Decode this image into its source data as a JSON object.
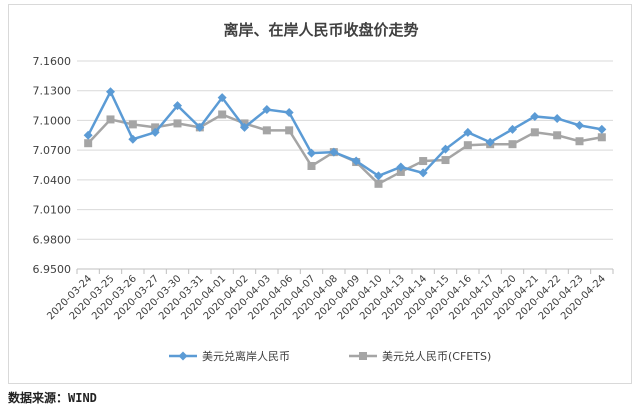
{
  "source": "数据来源：WIND",
  "chart_data": {
    "type": "line",
    "title": "离岸、在岸人民币收盘价走势",
    "xlabel": "",
    "ylabel": "",
    "ylim": [
      6.95,
      7.16
    ],
    "yticks": [
      "7.1600",
      "7.1300",
      "7.1000",
      "7.0700",
      "7.0400",
      "7.0100",
      "6.9800",
      "6.9500"
    ],
    "ytick_values": [
      7.16,
      7.13,
      7.1,
      7.07,
      7.04,
      7.01,
      6.98,
      6.95
    ],
    "grid": true,
    "legend_position": "bottom",
    "categories": [
      "2020-03-24",
      "2020-03-25",
      "2020-03-26",
      "2020-03-27",
      "2020-03-30",
      "2020-03-31",
      "2020-04-01",
      "2020-04-02",
      "2020-04-03",
      "2020-04-06",
      "2020-04-07",
      "2020-04-08",
      "2020-04-09",
      "2020-04-10",
      "2020-04-13",
      "2020-04-14",
      "2020-04-15",
      "2020-04-16",
      "2020-04-17",
      "2020-04-20",
      "2020-04-21",
      "2020-04-22",
      "2020-04-23",
      "2020-04-24"
    ],
    "series": [
      {
        "name": "美元兑离岸人民币",
        "color": "#5b9bd5",
        "marker": "diamond",
        "values": [
          7.085,
          7.129,
          7.081,
          7.088,
          7.115,
          7.093,
          7.123,
          7.093,
          7.111,
          7.108,
          7.067,
          7.068,
          7.059,
          7.044,
          7.053,
          7.047,
          7.071,
          7.088,
          7.078,
          7.091,
          7.104,
          7.102,
          7.095,
          7.091
        ]
      },
      {
        "name": "美元兑人民币(CFETS)",
        "color": "#a5a5a5",
        "marker": "square",
        "values": [
          7.077,
          7.101,
          7.096,
          7.093,
          7.097,
          7.093,
          7.106,
          7.097,
          7.09,
          7.09,
          7.054,
          7.068,
          7.058,
          7.036,
          7.048,
          7.059,
          7.06,
          7.075,
          7.076,
          7.076,
          7.088,
          7.085,
          7.079,
          7.083
        ]
      }
    ]
  }
}
